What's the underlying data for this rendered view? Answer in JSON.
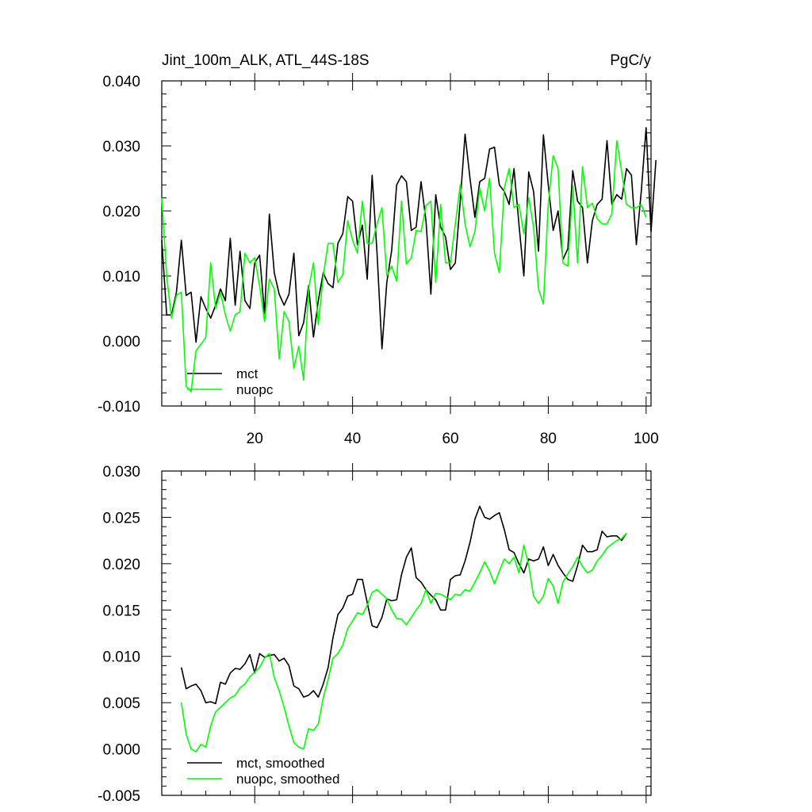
{
  "chart_data": [
    {
      "type": "line",
      "title": "Jint_100m_ALK, ATL_44S-18S",
      "units": "PgC/y",
      "xlim": [
        1,
        101
      ],
      "ylim": [
        -0.01,
        0.04
      ],
      "x_tick_values": [
        20,
        40,
        60,
        80,
        100
      ],
      "x_tick_labels": [
        "20",
        "40",
        "60",
        "80",
        "100"
      ],
      "y_tick_values": [
        -0.01,
        0.0,
        0.01,
        0.02,
        0.03,
        0.04
      ],
      "y_tick_labels": [
        "-0.010",
        "0.000",
        "0.010",
        "0.020",
        "0.030",
        "0.040"
      ],
      "legend_position": "bottom-left",
      "series": [
        {
          "name": "mct",
          "color": "#000000",
          "x_start": 1,
          "values": [
            0.0155,
            0.004,
            0.004,
            0.0075,
            0.0155,
            0.007,
            0.0075,
            -0.0002,
            0.0068,
            0.005,
            0.0035,
            0.0055,
            0.008,
            0.0062,
            0.0158,
            0.0055,
            0.0138,
            0.0062,
            0.005,
            0.012,
            0.0132,
            0.0042,
            0.0195,
            0.0105,
            0.0072,
            0.0055,
            0.0072,
            0.0135,
            0.0008,
            0.0028,
            0.0085,
            0.0006,
            0.0062,
            0.0105,
            0.0088,
            0.0082,
            0.015,
            0.0165,
            0.0222,
            0.0215,
            0.0148,
            0.0178,
            0.0095,
            0.0255,
            0.0135,
            -0.0012,
            0.009,
            0.014,
            0.024,
            0.0254,
            0.0245,
            0.017,
            0.0175,
            0.0245,
            0.0185,
            0.0072,
            0.0225,
            0.0175,
            0.016,
            0.011,
            0.012,
            0.0215,
            0.0318,
            0.025,
            0.019,
            0.0245,
            0.025,
            0.0295,
            0.0298,
            0.024,
            0.023,
            0.021,
            0.0265,
            0.018,
            0.01,
            0.026,
            0.023,
            0.0138,
            0.0317,
            0.024,
            0.017,
            0.02,
            0.0125,
            0.0142,
            0.0262,
            0.0215,
            0.0205,
            0.012,
            0.0185,
            0.021,
            0.0218,
            0.0308,
            0.021,
            0.0225,
            0.0218,
            0.0265,
            0.0255,
            0.0148,
            0.023,
            0.0328,
            0.0168,
            0.0278
          ]
        },
        {
          "name": "nuopc",
          "color": "#00ff00",
          "x_start": 1,
          "values": [
            0.022,
            0.01,
            0.0035,
            0.007,
            0.0075,
            -0.007,
            -0.0078,
            -0.0015,
            -0.0005,
            0.0005,
            0.012,
            0.005,
            0.0075,
            0.004,
            0.0015,
            0.004,
            0.0045,
            0.0135,
            0.012,
            0.0128,
            0.0085,
            0.003,
            0.0095,
            0.008,
            -0.0028,
            0.0045,
            0.003,
            -0.0042,
            -0.0008,
            -0.006,
            0.008,
            0.012,
            0.0025,
            0.01,
            0.015,
            0.015,
            0.009,
            0.0102,
            0.0185,
            0.0155,
            0.0135,
            0.0215,
            0.015,
            0.015,
            0.018,
            0.0205,
            0.01,
            0.0115,
            0.0092,
            0.0215,
            0.0118,
            0.0128,
            0.017,
            0.0168,
            0.0208,
            0.0215,
            0.009,
            0.021,
            0.012,
            0.012,
            0.018,
            0.024,
            0.018,
            0.0145,
            0.0168,
            0.0235,
            0.02,
            0.025,
            0.0135,
            0.0105,
            0.0235,
            0.0265,
            0.0205,
            0.021,
            0.0165,
            0.022,
            0.0175,
            0.008,
            0.0057,
            0.021,
            0.0285,
            0.0265,
            0.012,
            0.0115,
            0.0238,
            0.012,
            0.0268,
            0.0205,
            0.0212,
            0.0188,
            0.018,
            0.018,
            0.0195,
            0.0308,
            0.026,
            0.021,
            0.0205,
            0.0205,
            0.021,
            0.019
          ]
        }
      ]
    },
    {
      "type": "line",
      "title": "",
      "xlim": [
        1,
        101
      ],
      "ylim": [
        -0.005,
        0.03
      ],
      "x_tick_values": [
        20,
        40,
        60,
        80,
        100
      ],
      "x_tick_labels": [
        "",
        "",
        "",
        "",
        ""
      ],
      "y_tick_values": [
        -0.005,
        0.0,
        0.005,
        0.01,
        0.015,
        0.02,
        0.025,
        0.03
      ],
      "y_tick_labels": [
        "-0.005",
        "0.000",
        "0.005",
        "0.010",
        "0.015",
        "0.020",
        "0.025",
        "0.030"
      ],
      "legend_position": "bottom-left",
      "series": [
        {
          "name": "mct, smoothed",
          "color": "#000000",
          "x_start": 5,
          "values": [
            0.0088,
            0.0065,
            0.0068,
            0.007,
            0.0063,
            0.005,
            0.0051,
            0.0049,
            0.0072,
            0.007,
            0.0082,
            0.0087,
            0.0086,
            0.0092,
            0.0102,
            0.0082,
            0.0103,
            0.0099,
            0.0101,
            0.0102,
            0.0095,
            0.0098,
            0.009,
            0.0068,
            0.0065,
            0.0056,
            0.0058,
            0.0063,
            0.0056,
            0.007,
            0.0088,
            0.012,
            0.0145,
            0.0152,
            0.0165,
            0.0167,
            0.0183,
            0.0183,
            0.0158,
            0.0133,
            0.0131,
            0.0142,
            0.0162,
            0.016,
            0.0161,
            0.0188,
            0.0207,
            0.0217,
            0.0185,
            0.018,
            0.0172,
            0.0166,
            0.0161,
            0.015,
            0.015,
            0.0183,
            0.0187,
            0.0188,
            0.0203,
            0.0223,
            0.0248,
            0.0262,
            0.025,
            0.0248,
            0.0252,
            0.0255,
            0.0237,
            0.0215,
            0.0212,
            0.02,
            0.019,
            0.0205,
            0.0203,
            0.0205,
            0.0218,
            0.0198,
            0.021,
            0.0198,
            0.019,
            0.0183,
            0.0181,
            0.0198,
            0.022,
            0.0213,
            0.0213,
            0.0215,
            0.0235,
            0.0229,
            0.023,
            0.023,
            0.0225,
            0.0233
          ]
        },
        {
          "name": "nuopc, smoothed",
          "color": "#00ff00",
          "x_start": 5,
          "values": [
            0.005,
            0.0016,
            0.0,
            -0.0003,
            0.0005,
            0.0002,
            0.0025,
            0.004,
            0.0045,
            0.005,
            0.0055,
            0.0058,
            0.0066,
            0.007,
            0.0078,
            0.0083,
            0.0088,
            0.0098,
            0.0103,
            0.0077,
            0.0063,
            0.0045,
            0.0025,
            0.0007,
            0.0002,
            0.0,
            0.0022,
            0.002,
            0.0027,
            0.0055,
            0.0075,
            0.0098,
            0.0103,
            0.0112,
            0.013,
            0.0138,
            0.0147,
            0.0145,
            0.0155,
            0.0169,
            0.0172,
            0.0167,
            0.0162,
            0.015,
            0.0141,
            0.014,
            0.0134,
            0.0142,
            0.015,
            0.0157,
            0.0172,
            0.0157,
            0.0168,
            0.0167,
            0.0164,
            0.0161,
            0.0167,
            0.0166,
            0.0172,
            0.017,
            0.018,
            0.019,
            0.0202,
            0.0192,
            0.0178,
            0.0192,
            0.0205,
            0.02,
            0.0207,
            0.019,
            0.022,
            0.0198,
            0.0165,
            0.0157,
            0.0165,
            0.0184,
            0.0176,
            0.0157,
            0.018,
            0.0189,
            0.0197,
            0.0207,
            0.0197,
            0.019,
            0.0193,
            0.0203,
            0.0209,
            0.0217,
            0.0221,
            0.0225,
            0.0227,
            0.0233
          ]
        }
      ]
    }
  ]
}
